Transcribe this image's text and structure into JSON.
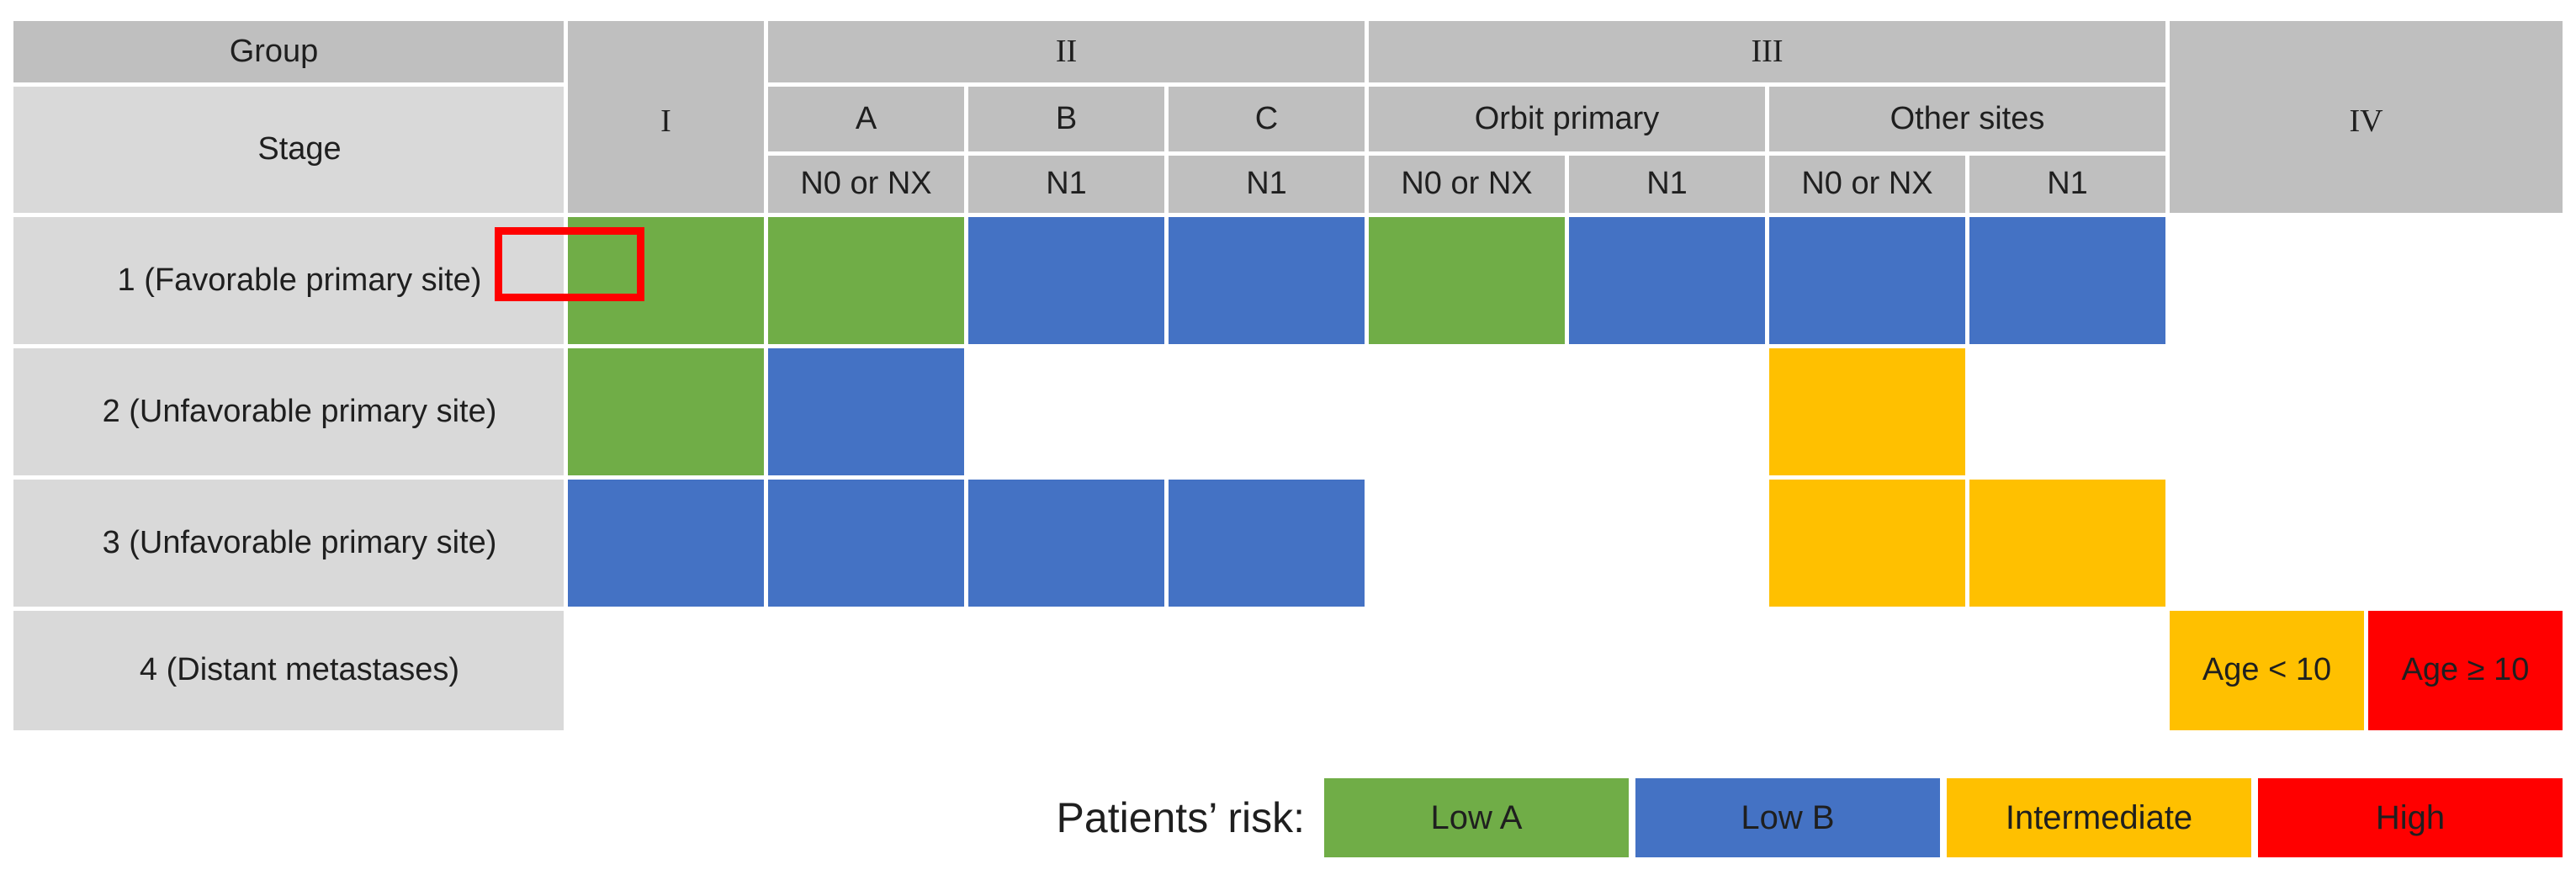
{
  "colors": {
    "low_a": "#70AD47",
    "low_b": "#4472C4",
    "intermediate": "#FFC000",
    "high": "#FF0000",
    "header_gray": "#BFBFBF",
    "label_gray": "#D9D9D9",
    "highlight_red": "#FF0000"
  },
  "table": {
    "corner": {
      "group": "Group",
      "stage": "Stage"
    },
    "group_headers": [
      {
        "label": "I",
        "col": 2,
        "colspan": 1,
        "rowspan": 3
      },
      {
        "label": "II",
        "col": 3,
        "colspan": 3,
        "rowspan": 1
      },
      {
        "label": "III",
        "col": 6,
        "colspan": 4,
        "rowspan": 1
      },
      {
        "label": "IV",
        "col": 10,
        "colspan": 2,
        "rowspan": 3
      }
    ],
    "sub_headers": [
      {
        "label": "A",
        "col": 3,
        "colspan": 1
      },
      {
        "label": "B",
        "col": 4,
        "colspan": 1
      },
      {
        "label": "C",
        "col": 5,
        "colspan": 1
      },
      {
        "label": "Orbit primary",
        "col": 6,
        "colspan": 2
      },
      {
        "label": "Other sites",
        "col": 8,
        "colspan": 2
      }
    ],
    "node_headers": [
      {
        "label": "N0 or NX",
        "col": 3
      },
      {
        "label": "N1",
        "col": 4
      },
      {
        "label": "N1",
        "col": 5
      },
      {
        "label": "N0 or NX",
        "col": 6
      },
      {
        "label": "N1",
        "col": 7
      },
      {
        "label": "N0 or NX",
        "col": 8
      },
      {
        "label": "N1",
        "col": 9
      }
    ],
    "rows": [
      {
        "label": "1 (Favorable primary site)",
        "cells": [
          {
            "risk": "low_a"
          },
          {
            "risk": "low_a"
          },
          {
            "risk": "low_b"
          },
          {
            "risk": "low_b"
          },
          {
            "risk": "low_a"
          },
          {
            "risk": "low_b"
          },
          {
            "risk": "low_b"
          },
          {
            "risk": "low_b"
          },
          null,
          null
        ]
      },
      {
        "label": "2 (Unfavorable primary site)",
        "cells": [
          {
            "risk": "low_a"
          },
          {
            "risk": "low_b"
          },
          null,
          null,
          null,
          null,
          {
            "risk": "intermediate"
          },
          null,
          null,
          null
        ]
      },
      {
        "label": "3 (Unfavorable primary site)",
        "cells": [
          {
            "risk": "low_b"
          },
          {
            "risk": "low_b"
          },
          {
            "risk": "low_b"
          },
          {
            "risk": "low_b"
          },
          null,
          null,
          {
            "risk": "intermediate"
          },
          {
            "risk": "intermediate"
          },
          null,
          null
        ]
      },
      {
        "label": "4 (Distant metastases)",
        "cells": [
          null,
          null,
          null,
          null,
          null,
          null,
          null,
          null,
          {
            "risk": "intermediate",
            "label": "Age < 10"
          },
          {
            "risk": "high",
            "label": "Age ≥ 10"
          }
        ]
      }
    ]
  },
  "legend": {
    "label": "Patients’ risk:",
    "items": [
      {
        "label": "Low A",
        "color": "low_a"
      },
      {
        "label": "Low B",
        "color": "low_b"
      },
      {
        "label": "Intermediate",
        "color": "intermediate"
      },
      {
        "label": "High",
        "color": "high"
      }
    ]
  }
}
